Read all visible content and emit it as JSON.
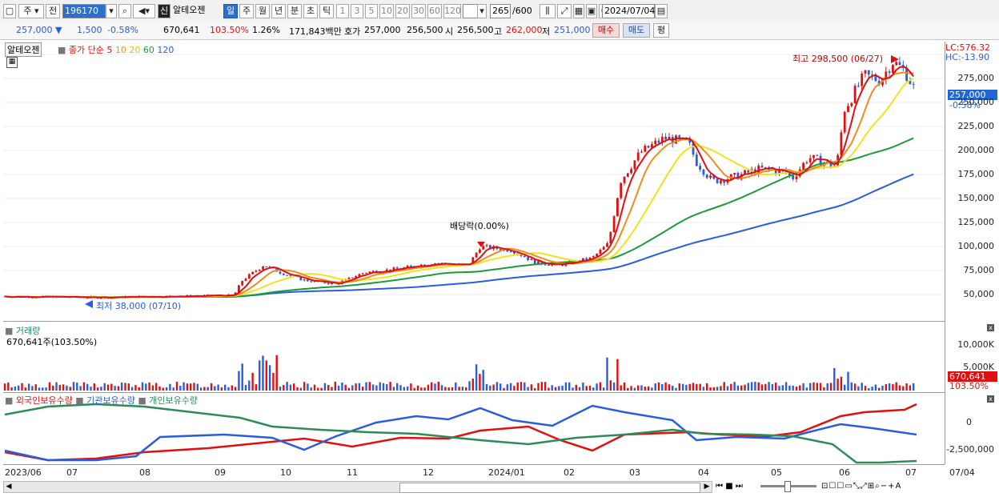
{
  "toolbar": {
    "period_select": "주",
    "prev_label": "전",
    "stock_code": "196170",
    "stock_badge": "신",
    "stock_name": "알테오젠",
    "periods": [
      "일",
      "주",
      "월",
      "년",
      "분",
      "초",
      "틱"
    ],
    "active_period": "일",
    "intervals": [
      "1",
      "3",
      "5",
      "10",
      "20",
      "30",
      "60",
      "120"
    ],
    "count": "265",
    "count_total": "/600",
    "date": "2024/07/04"
  },
  "quote": {
    "price": "257,000",
    "change": "1,500",
    "change_pct": "-0.58%",
    "volume": "670,641",
    "volume_ratio": "103.50%",
    "turnover_pct": "1.26%",
    "amount": "171,843백만",
    "hoga_label": "호가",
    "hoga_ask": "257,000",
    "hoga_bid": "256,500",
    "open_label": "시",
    "open": "256,500",
    "high_label": "고",
    "high": "262,000",
    "low_label": "저",
    "low": "251,000",
    "buy_button": "매수",
    "sell_button": "매도",
    "eval_button": "평"
  },
  "price_panel": {
    "name": "알테오젠",
    "indicator": "종가 단순",
    "ma_periods": [
      "5",
      "10",
      "20",
      "60",
      "120"
    ],
    "ma_colors": [
      "#e01010",
      "#f08c1e",
      "#f0e21e",
      "#1e9a3a",
      "#2b5ce0"
    ],
    "lc": "LC:576.32",
    "hc": "HC:-13.90",
    "current_tag": "257,000",
    "current_pct": "-0.58%",
    "high_note": "최고 298,500 (06/27)",
    "low_note": "최저 38,000 (07/10)",
    "dividend_note": "배당락(0.00%)",
    "y_ticks": [
      "275,000",
      "250,000",
      "225,000",
      "200,000",
      "175,000",
      "150,000",
      "125,000",
      "100,000",
      "75,000",
      "50,000"
    ]
  },
  "volume_panel": {
    "title": "거래량",
    "value": "670,641주(103.50%)",
    "y_ticks": [
      "10,000K",
      "5,000K"
    ],
    "tag_value": "670,641",
    "tag_pct": "103.50%"
  },
  "holdings_panel": {
    "series": [
      "외국인보유수량",
      "기관보유수량",
      "개인보유수량"
    ],
    "colors": [
      "#e01010",
      "#2b5ce0",
      "#2e8b57"
    ],
    "y_ticks": [
      "0",
      "-2,500,000"
    ]
  },
  "x_axis": {
    "labels": [
      "2023/06",
      "07",
      "08",
      "09",
      "10",
      "11",
      "12",
      "2024/01",
      "02",
      "03",
      "04",
      "05",
      "06",
      "07"
    ],
    "right_label": "07/04"
  },
  "colors": {
    "up": "#e01010",
    "down": "#2b5ce0",
    "accent": "#2f6fcc"
  }
}
